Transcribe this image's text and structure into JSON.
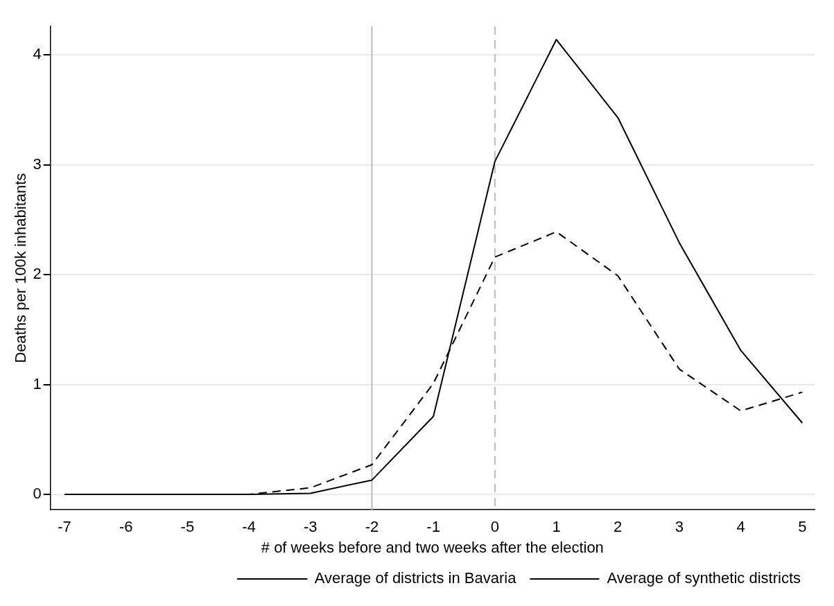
{
  "chart_data": {
    "type": "line",
    "xlabel": "# of weeks before and two weeks after the election",
    "ylabel": "Deaths per 100k inhabitants",
    "x": [
      -7,
      -6,
      -5,
      -4,
      -3,
      -2,
      -1,
      0,
      1,
      2,
      3,
      4,
      5
    ],
    "series": [
      {
        "name": "Average of districts in Bavaria",
        "color": "#000000",
        "line_style": "solid",
        "values": [
          0,
          0,
          0,
          0,
          0.01,
          0.13,
          0.71,
          3.03,
          4.14,
          3.43,
          2.29,
          1.31,
          0.65
        ]
      },
      {
        "name": "Average of synthetic districts",
        "color": "#000000",
        "line_style": "dashed",
        "values": [
          0,
          0,
          0,
          0,
          0.06,
          0.27,
          1.01,
          2.16,
          2.39,
          1.99,
          1.14,
          0.76,
          0.93
        ]
      }
    ],
    "xlim": [
      -7.23,
      5.2
    ],
    "xticks": [
      -7,
      -6,
      -5,
      -4,
      -3,
      -2,
      -1,
      0,
      1,
      2,
      3,
      4,
      5
    ],
    "ylim": [
      -0.14,
      4.26
    ],
    "yticks": [
      0,
      1,
      2,
      3,
      4
    ],
    "grid": "y",
    "legend": "bottom",
    "marker": "none",
    "ref_lines": [
      {
        "axis": "x",
        "value": -2,
        "color": "#bbbbbb",
        "line_style": "solid"
      },
      {
        "axis": "x",
        "value": 0,
        "color": "#bbbbbb",
        "line_style": "dashed"
      }
    ]
  }
}
